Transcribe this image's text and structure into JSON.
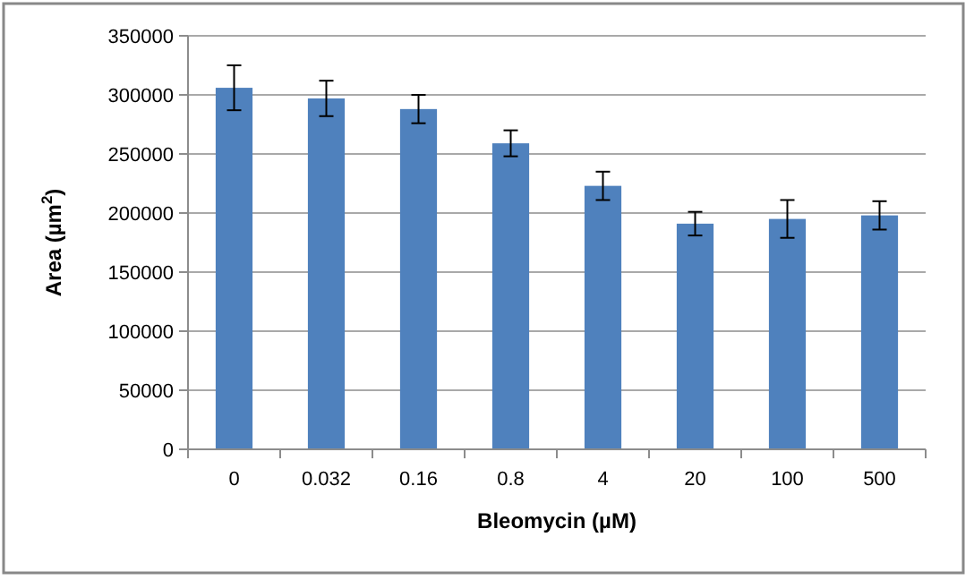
{
  "chart_data": {
    "type": "bar",
    "xlabel": "Bleomycin (µM)",
    "ylabel": "Area (µm$^{2}$)",
    "categories": [
      "0",
      "0.032",
      "0.16",
      "0.8",
      "4",
      "20",
      "100",
      "500"
    ],
    "values": [
      306000,
      297000,
      288000,
      259000,
      223000,
      191000,
      195000,
      198000
    ],
    "errors": [
      19000,
      15000,
      12000,
      11000,
      12000,
      10000,
      16000,
      12000
    ],
    "color": "#4f81bd",
    "ylim": [
      0,
      350000
    ],
    "yticks": [
      0,
      50000,
      100000,
      150000,
      200000,
      250000,
      300000,
      350000
    ],
    "grid": "y"
  }
}
